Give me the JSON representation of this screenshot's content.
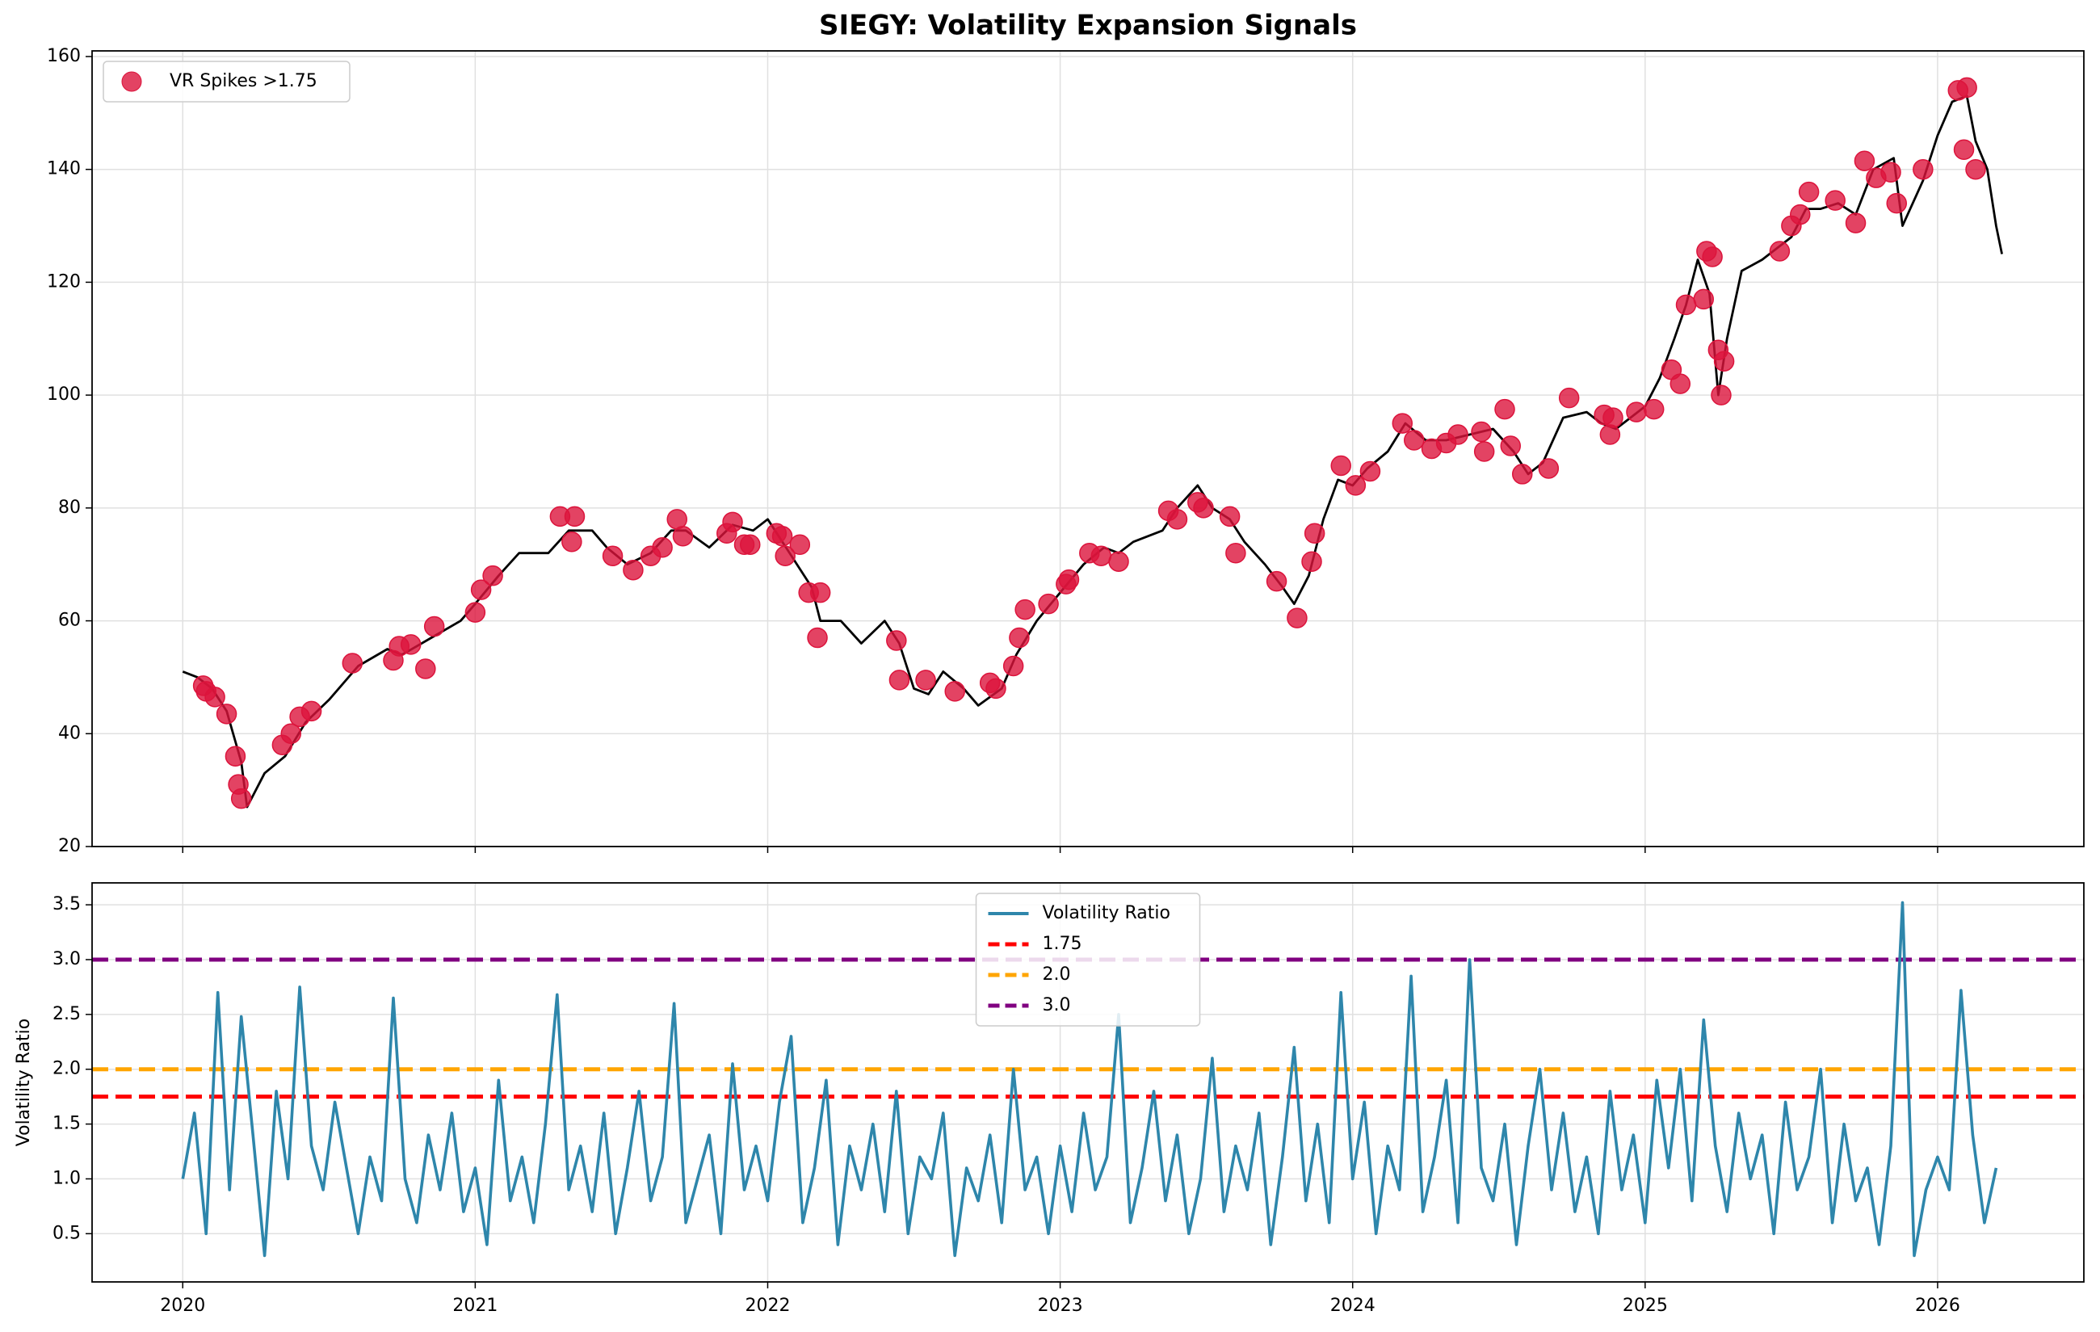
{
  "chart_data": [
    {
      "type": "line",
      "title": "SIEGY: Volatility Expansion Signals",
      "ylim": [
        20,
        161
      ],
      "yticks": [
        20,
        40,
        60,
        80,
        100,
        120,
        140,
        160
      ],
      "grid": true,
      "legend": "upper left",
      "series": [
        {
          "color": "#000000",
          "x": [
            2020.0,
            2020.05,
            2020.1,
            2020.15,
            2020.2,
            2020.22,
            2020.28,
            2020.35,
            2020.42,
            2020.5,
            2020.6,
            2020.7,
            2020.75,
            2020.85,
            2020.95,
            2021.0,
            2021.08,
            2021.15,
            2021.25,
            2021.32,
            2021.4,
            2021.45,
            2021.52,
            2021.6,
            2021.67,
            2021.72,
            2021.8,
            2021.88,
            2021.95,
            2022.0,
            2022.05,
            2022.1,
            2022.15,
            2022.18,
            2022.25,
            2022.32,
            2022.4,
            2022.45,
            2022.5,
            2022.55,
            2022.6,
            2022.67,
            2022.72,
            2022.8,
            2022.85,
            2022.92,
            2023.0,
            2023.08,
            2023.15,
            2023.2,
            2023.25,
            2023.35,
            2023.4,
            2023.47,
            2023.52,
            2023.58,
            2023.63,
            2023.7,
            2023.76,
            2023.8,
            2023.85,
            2023.9,
            2023.95,
            2024.0,
            2024.05,
            2024.12,
            2024.18,
            2024.25,
            2024.32,
            2024.4,
            2024.48,
            2024.55,
            2024.6,
            2024.65,
            2024.72,
            2024.8,
            2024.85,
            2024.9,
            2024.95,
            2025.0,
            2025.05,
            2025.1,
            2025.14,
            2025.18,
            2025.22,
            2025.25,
            2025.28,
            2025.33,
            2025.4,
            2025.5,
            2025.55,
            2025.6,
            2025.66,
            2025.72,
            2025.78,
            2025.85,
            2025.88,
            2025.95,
            2026.0,
            2026.05,
            2026.1,
            2026.13,
            2026.17,
            2026.2,
            2026.22
          ],
          "values": [
            51,
            50,
            48,
            44,
            35,
            27,
            33,
            36,
            42,
            46,
            52,
            55,
            54,
            57,
            60,
            63,
            68,
            72,
            72,
            76,
            76,
            73,
            70,
            72,
            76,
            76,
            73,
            77,
            76,
            78,
            74,
            70,
            66,
            60,
            60,
            56,
            60,
            56,
            48,
            47,
            51,
            48,
            45,
            48,
            54,
            60,
            65,
            70,
            73,
            72,
            74,
            76,
            80,
            84,
            80,
            78,
            74,
            70,
            66,
            63,
            68,
            78,
            85,
            84,
            87,
            90,
            95,
            92,
            92,
            93,
            94,
            90,
            86,
            88,
            96,
            97,
            95,
            94,
            96,
            98,
            103,
            110,
            116,
            124,
            118,
            100,
            110,
            122,
            124,
            128,
            133,
            133,
            134,
            132,
            140,
            142,
            130,
            138,
            146,
            152,
            153,
            145,
            140,
            130,
            125
          ]
        },
        {
          "name": "VR Spikes >1.75",
          "type": "scatter",
          "color": "#dc143c",
          "x": [
            2020.07,
            2020.08,
            2020.11,
            2020.15,
            2020.18,
            2020.19,
            2020.2,
            2020.34,
            2020.37,
            2020.4,
            2020.44,
            2020.58,
            2020.72,
            2020.74,
            2020.78,
            2020.83,
            2020.86,
            2021.0,
            2021.02,
            2021.06,
            2021.29,
            2021.33,
            2021.34,
            2021.47,
            2021.54,
            2021.6,
            2021.64,
            2021.69,
            2021.71,
            2021.86,
            2021.88,
            2021.92,
            2021.94,
            2022.03,
            2022.05,
            2022.06,
            2022.11,
            2022.14,
            2022.17,
            2022.18,
            2022.44,
            2022.45,
            2022.54,
            2022.64,
            2022.76,
            2022.78,
            2022.84,
            2022.86,
            2022.88,
            2022.96,
            2023.02,
            2023.03,
            2023.1,
            2023.14,
            2023.2,
            2023.37,
            2023.4,
            2023.47,
            2023.49,
            2023.58,
            2023.6,
            2023.74,
            2023.81,
            2023.86,
            2023.87,
            2023.96,
            2024.01,
            2024.06,
            2024.17,
            2024.21,
            2024.27,
            2024.32,
            2024.36,
            2024.44,
            2024.45,
            2024.52,
            2024.54,
            2024.58,
            2024.67,
            2024.74,
            2024.86,
            2024.88,
            2024.89,
            2024.97,
            2025.03,
            2025.09,
            2025.12,
            2025.14,
            2025.2,
            2025.21,
            2025.23,
            2025.25,
            2025.26,
            2025.27,
            2025.46,
            2025.5,
            2025.53,
            2025.56,
            2025.65,
            2025.72,
            2025.75,
            2025.79,
            2025.84,
            2025.86,
            2025.95,
            2026.07,
            2026.1,
            2026.09,
            2026.13
          ],
          "values": [
            48.5,
            47.5,
            46.5,
            43.5,
            36,
            31,
            28.5,
            38,
            40,
            43,
            44,
            52.5,
            53,
            55.5,
            55.8,
            51.5,
            59,
            61.5,
            65.5,
            68,
            78.5,
            74,
            78.5,
            71.5,
            69,
            71.5,
            73,
            78,
            75,
            75.5,
            77.5,
            73.5,
            73.5,
            75.5,
            75,
            71.5,
            73.5,
            65,
            57,
            65,
            56.5,
            49.5,
            49.5,
            47.5,
            49,
            48,
            52,
            57,
            62,
            63,
            66.5,
            67.3,
            72,
            71.5,
            70.5,
            79.5,
            78,
            81,
            80,
            78.5,
            72,
            67,
            60.5,
            70.5,
            75.5,
            87.5,
            84,
            86.5,
            95,
            92,
            90.5,
            91.5,
            93,
            93.5,
            90,
            97.5,
            91,
            86,
            87,
            99.5,
            96.5,
            93,
            96,
            97,
            97.5,
            104.5,
            102,
            116,
            117,
            125.5,
            124.5,
            108,
            100,
            106,
            125.5,
            130,
            132,
            136,
            134.5,
            130.5,
            141.5,
            138.5,
            139.5,
            134,
            140,
            154,
            154.5,
            143.5,
            140
          ]
        }
      ]
    },
    {
      "type": "line",
      "ylabel": "Volatility Ratio",
      "xlim": [
        2019.69,
        2026.5
      ],
      "xticks": [
        2020,
        2021,
        2022,
        2023,
        2024,
        2025,
        2026
      ],
      "ylim": [
        0.06,
        3.7
      ],
      "yticks": [
        0.5,
        {
          "value": 1,
          "label": "1.0"
        },
        1.5,
        {
          "value": 2,
          "label": "2.0"
        },
        2.5,
        {
          "value": 3,
          "label": "3.0"
        },
        3.5
      ],
      "grid": true,
      "legend": "upper center",
      "series": [
        {
          "name": "Volatility Ratio",
          "color": "#2e86ab",
          "x": [
            2020.0,
            2020.04,
            2020.08,
            2020.12,
            2020.16,
            2020.2,
            2020.24,
            2020.28,
            2020.32,
            2020.36,
            2020.4,
            2020.44,
            2020.48,
            2020.52,
            2020.56,
            2020.6,
            2020.64,
            2020.68,
            2020.72,
            2020.76,
            2020.8,
            2020.84,
            2020.88,
            2020.92,
            2020.96,
            2021.0,
            2021.04,
            2021.08,
            2021.12,
            2021.16,
            2021.2,
            2021.24,
            2021.28,
            2021.32,
            2021.36,
            2021.4,
            2021.44,
            2021.48,
            2021.52,
            2021.56,
            2021.6,
            2021.64,
            2021.68,
            2021.72,
            2021.76,
            2021.8,
            2021.84,
            2021.88,
            2021.92,
            2021.96,
            2022.0,
            2022.04,
            2022.08,
            2022.12,
            2022.16,
            2022.2,
            2022.24,
            2022.28,
            2022.32,
            2022.36,
            2022.4,
            2022.44,
            2022.48,
            2022.52,
            2022.56,
            2022.6,
            2022.64,
            2022.68,
            2022.72,
            2022.76,
            2022.8,
            2022.84,
            2022.88,
            2022.92,
            2022.96,
            2023.0,
            2023.04,
            2023.08,
            2023.12,
            2023.16,
            2023.2,
            2023.24,
            2023.28,
            2023.32,
            2023.36,
            2023.4,
            2023.44,
            2023.48,
            2023.52,
            2023.56,
            2023.6,
            2023.64,
            2023.68,
            2023.72,
            2023.76,
            2023.8,
            2023.84,
            2023.88,
            2023.92,
            2023.96,
            2024.0,
            2024.04,
            2024.08,
            2024.12,
            2024.16,
            2024.2,
            2024.24,
            2024.28,
            2024.32,
            2024.36,
            2024.4,
            2024.44,
            2024.48,
            2024.52,
            2024.56,
            2024.6,
            2024.64,
            2024.68,
            2024.72,
            2024.76,
            2024.8,
            2024.84,
            2024.88,
            2024.92,
            2024.96,
            2025.0,
            2025.04,
            2025.08,
            2025.12,
            2025.16,
            2025.2,
            2025.24,
            2025.28,
            2025.32,
            2025.36,
            2025.4,
            2025.44,
            2025.48,
            2025.52,
            2025.56,
            2025.6,
            2025.64,
            2025.68,
            2025.72,
            2025.76,
            2025.8,
            2025.84,
            2025.88,
            2025.92,
            2025.96,
            2026.0,
            2026.04,
            2026.08,
            2026.12,
            2026.16,
            2026.2
          ],
          "values": [
            1.0,
            1.6,
            0.5,
            2.7,
            0.9,
            2.48,
            1.4,
            0.3,
            1.8,
            1.0,
            2.75,
            1.3,
            0.9,
            1.7,
            1.1,
            0.5,
            1.2,
            0.8,
            2.65,
            1.0,
            0.6,
            1.4,
            0.9,
            1.6,
            0.7,
            1.1,
            0.4,
            1.9,
            0.8,
            1.2,
            0.6,
            1.5,
            2.68,
            0.9,
            1.3,
            0.7,
            1.6,
            0.5,
            1.1,
            1.8,
            0.8,
            1.2,
            2.6,
            0.6,
            1.0,
            1.4,
            0.5,
            2.05,
            0.9,
            1.3,
            0.8,
            1.7,
            2.3,
            0.6,
            1.1,
            1.9,
            0.4,
            1.3,
            0.9,
            1.5,
            0.7,
            1.8,
            0.5,
            1.2,
            1.0,
            1.6,
            0.3,
            1.1,
            0.8,
            1.4,
            0.6,
            2.0,
            0.9,
            1.2,
            0.5,
            1.3,
            0.7,
            1.6,
            0.9,
            1.2,
            2.5,
            0.6,
            1.1,
            1.8,
            0.8,
            1.4,
            0.5,
            1.0,
            2.1,
            0.7,
            1.3,
            0.9,
            1.6,
            0.4,
            1.2,
            2.2,
            0.8,
            1.5,
            0.6,
            2.7,
            1.0,
            1.7,
            0.5,
            1.3,
            0.9,
            2.85,
            0.7,
            1.2,
            1.9,
            0.6,
            3.0,
            1.1,
            0.8,
            1.5,
            0.4,
            1.3,
            2.0,
            0.9,
            1.6,
            0.7,
            1.2,
            0.5,
            1.8,
            0.9,
            1.4,
            0.6,
            1.9,
            1.1,
            2.0,
            0.8,
            2.45,
            1.3,
            0.7,
            1.6,
            1.0,
            1.4,
            0.5,
            1.7,
            0.9,
            1.2,
            2.0,
            0.6,
            1.5,
            0.8,
            1.1,
            0.4,
            1.3,
            3.52,
            0.3,
            0.9,
            1.2,
            0.9,
            2.72,
            1.4,
            0.6,
            1.1
          ]
        }
      ],
      "hlines": [
        {
          "name": "1.75",
          "value": 1.75,
          "color": "#ff0000"
        },
        {
          "name": "2.0",
          "value": 2.0,
          "color": "#ffa500"
        },
        {
          "name": "3.0",
          "value": 3.0,
          "color": "#800080"
        }
      ]
    }
  ]
}
